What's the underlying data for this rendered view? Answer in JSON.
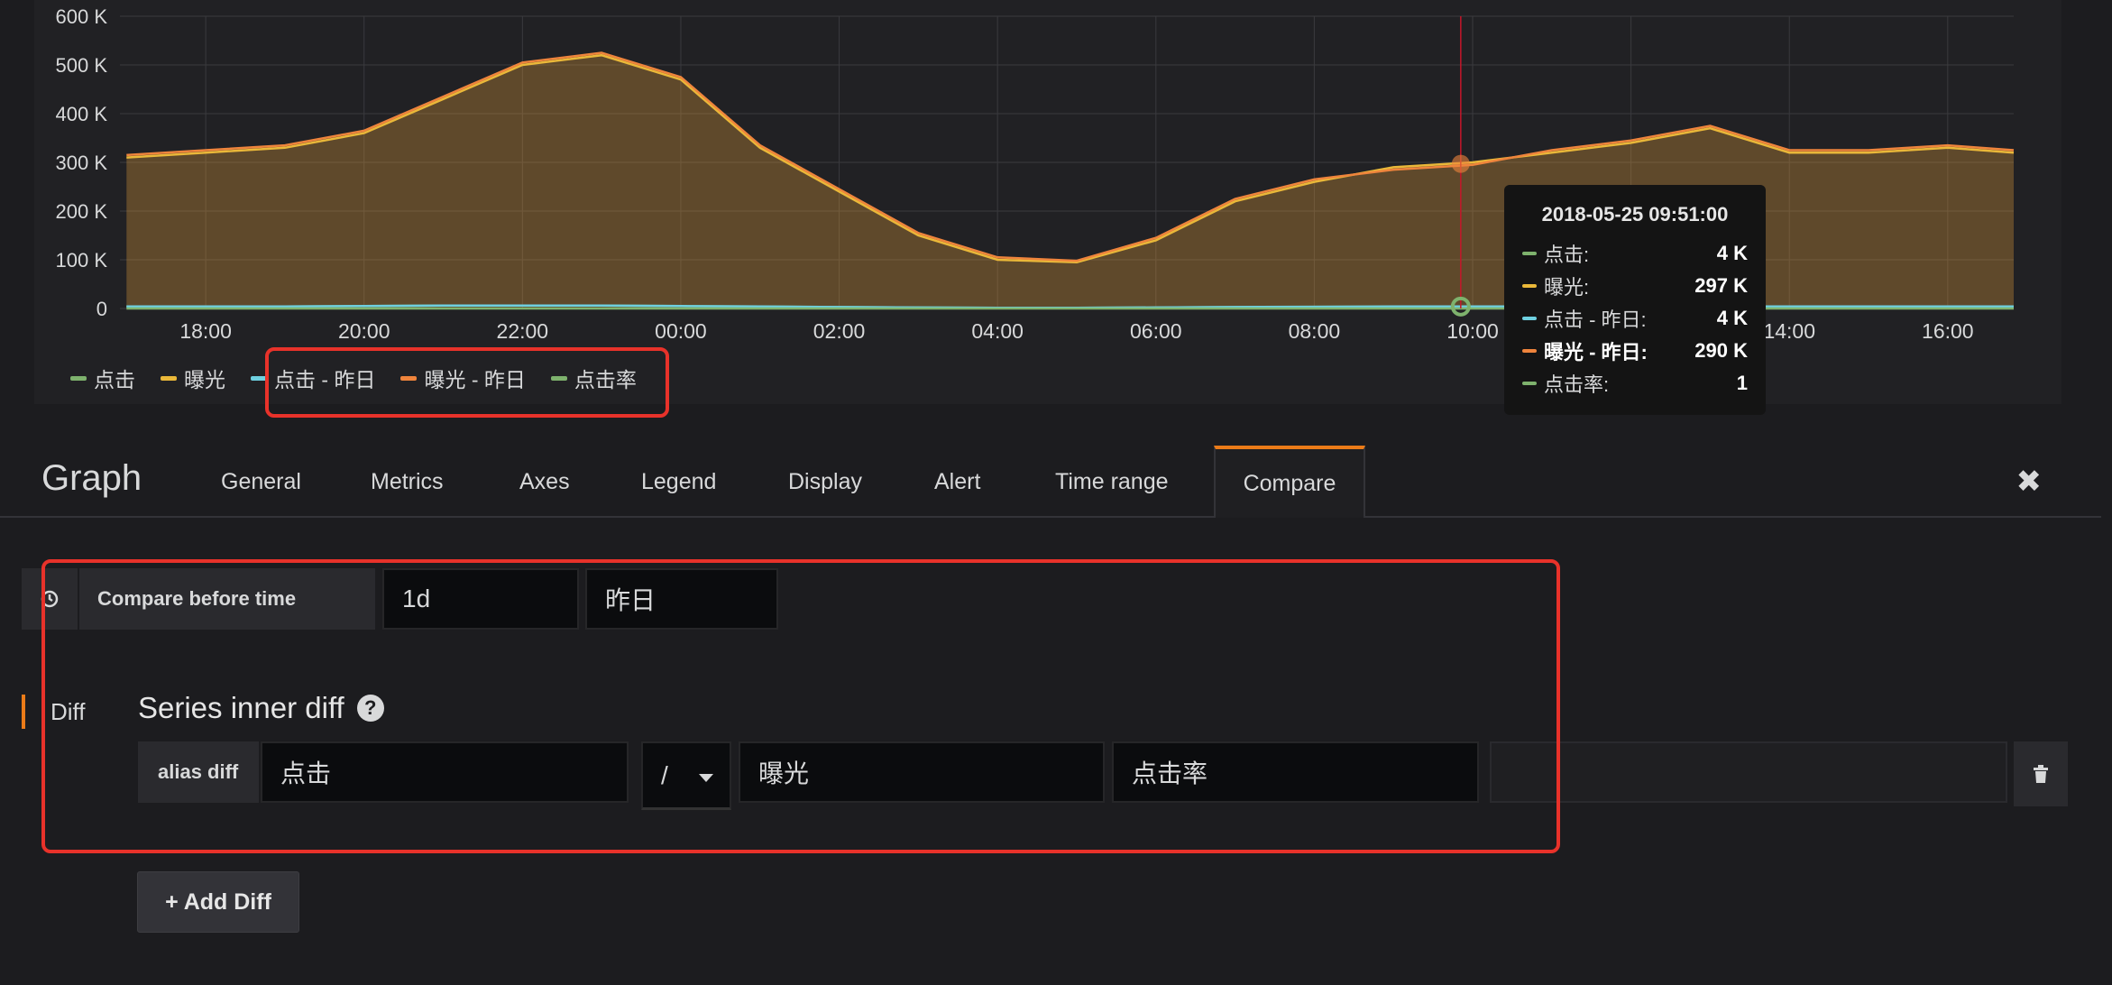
{
  "chart_data": {
    "type": "line",
    "title": "",
    "xlabel": "",
    "ylabel": "",
    "x_ticks": [
      "18:00",
      "20:00",
      "22:00",
      "00:00",
      "02:00",
      "04:00",
      "06:00",
      "08:00",
      "10:00",
      "12:00",
      "14:00",
      "16:00"
    ],
    "y_ticks": [
      "0",
      "100 K",
      "200 K",
      "300 K",
      "400 K",
      "500 K",
      "600 K"
    ],
    "ylim": [
      0,
      600000
    ],
    "x_hours_start": "16:55",
    "x": [
      "17:00",
      "18:00",
      "19:00",
      "20:00",
      "21:00",
      "22:00",
      "23:00",
      "00:00",
      "01:00",
      "02:00",
      "03:00",
      "04:00",
      "05:00",
      "06:00",
      "07:00",
      "08:00",
      "09:00",
      "10:00",
      "11:00",
      "12:00",
      "13:00",
      "14:00",
      "15:00",
      "16:00",
      "16:50"
    ],
    "series": [
      {
        "name": "点击",
        "color": "#7eb26d",
        "values": [
          4000,
          4000,
          4000,
          5000,
          6000,
          6000,
          6000,
          5000,
          4000,
          3000,
          2000,
          1500,
          1500,
          2000,
          3000,
          3500,
          4000,
          4000,
          4000,
          4000,
          4000,
          4000,
          4000,
          4000,
          4000
        ]
      },
      {
        "name": "曝光",
        "color": "#eab839",
        "values": [
          310000,
          320000,
          330000,
          360000,
          430000,
          500000,
          520000,
          470000,
          330000,
          240000,
          150000,
          100000,
          95000,
          140000,
          220000,
          260000,
          290000,
          300000,
          320000,
          340000,
          370000,
          320000,
          320000,
          330000,
          320000
        ]
      },
      {
        "name": "点击 - 昨日",
        "color": "#6ed0e0",
        "values": [
          4000,
          4000,
          4000,
          5000,
          6000,
          6000,
          6000,
          5000,
          4000,
          3000,
          2000,
          1500,
          1500,
          2000,
          3000,
          3500,
          4000,
          4000,
          4000,
          4000,
          4000,
          4000,
          4000,
          4000,
          4000
        ]
      },
      {
        "name": "曝光 - 昨日",
        "color": "#ef843c",
        "values": [
          315000,
          325000,
          335000,
          365000,
          435000,
          505000,
          525000,
          475000,
          335000,
          245000,
          155000,
          105000,
          98000,
          145000,
          225000,
          265000,
          285000,
          295000,
          325000,
          345000,
          375000,
          325000,
          325000,
          335000,
          325000
        ]
      },
      {
        "name": "点击率",
        "color": "#7eb26d",
        "values": [
          1,
          1,
          1,
          1,
          1,
          1,
          1,
          1,
          1,
          1,
          1,
          1,
          1,
          1,
          1,
          1,
          1,
          1,
          1,
          1,
          1,
          1,
          1,
          1,
          1
        ]
      }
    ],
    "legend": {
      "position": "bottom-left",
      "items": [
        "点击",
        "曝光",
        "点击 - 昨日",
        "曝光 - 昨日",
        "点击率"
      ]
    },
    "grid": true,
    "hover_time": "09:51"
  },
  "tooltip": {
    "title": "2018-05-25 09:51:00",
    "rows": [
      {
        "label": "点击:",
        "value": "4 K",
        "color": "#7eb26d"
      },
      {
        "label": "曝光:",
        "value": "297 K",
        "color": "#eab839"
      },
      {
        "label": "点击 - 昨日:",
        "value": "4 K",
        "color": "#6ed0e0"
      },
      {
        "label": "曝光 - 昨日:",
        "value": "290 K",
        "color": "#ef843c"
      },
      {
        "label": "点击率:",
        "value": "1",
        "color": "#7eb26d"
      }
    ]
  },
  "editor": {
    "title": "Graph",
    "tabs": [
      "General",
      "Metrics",
      "Axes",
      "Legend",
      "Display",
      "Alert",
      "Time range",
      "Compare"
    ],
    "active_tab": "Compare"
  },
  "compare": {
    "label": "Compare before time",
    "offset_value": "1d",
    "alias_value": "昨日"
  },
  "diff": {
    "section_label": "Diff",
    "title": "Series inner diff",
    "alias_label": "alias diff",
    "left_series": "点击",
    "operator": "/",
    "right_series": "曝光",
    "alias": "点击率",
    "extra": "",
    "add_label": "+ Add Diff"
  },
  "colors": {
    "accent": "#eb7b18",
    "highlight": "#e8322a"
  }
}
